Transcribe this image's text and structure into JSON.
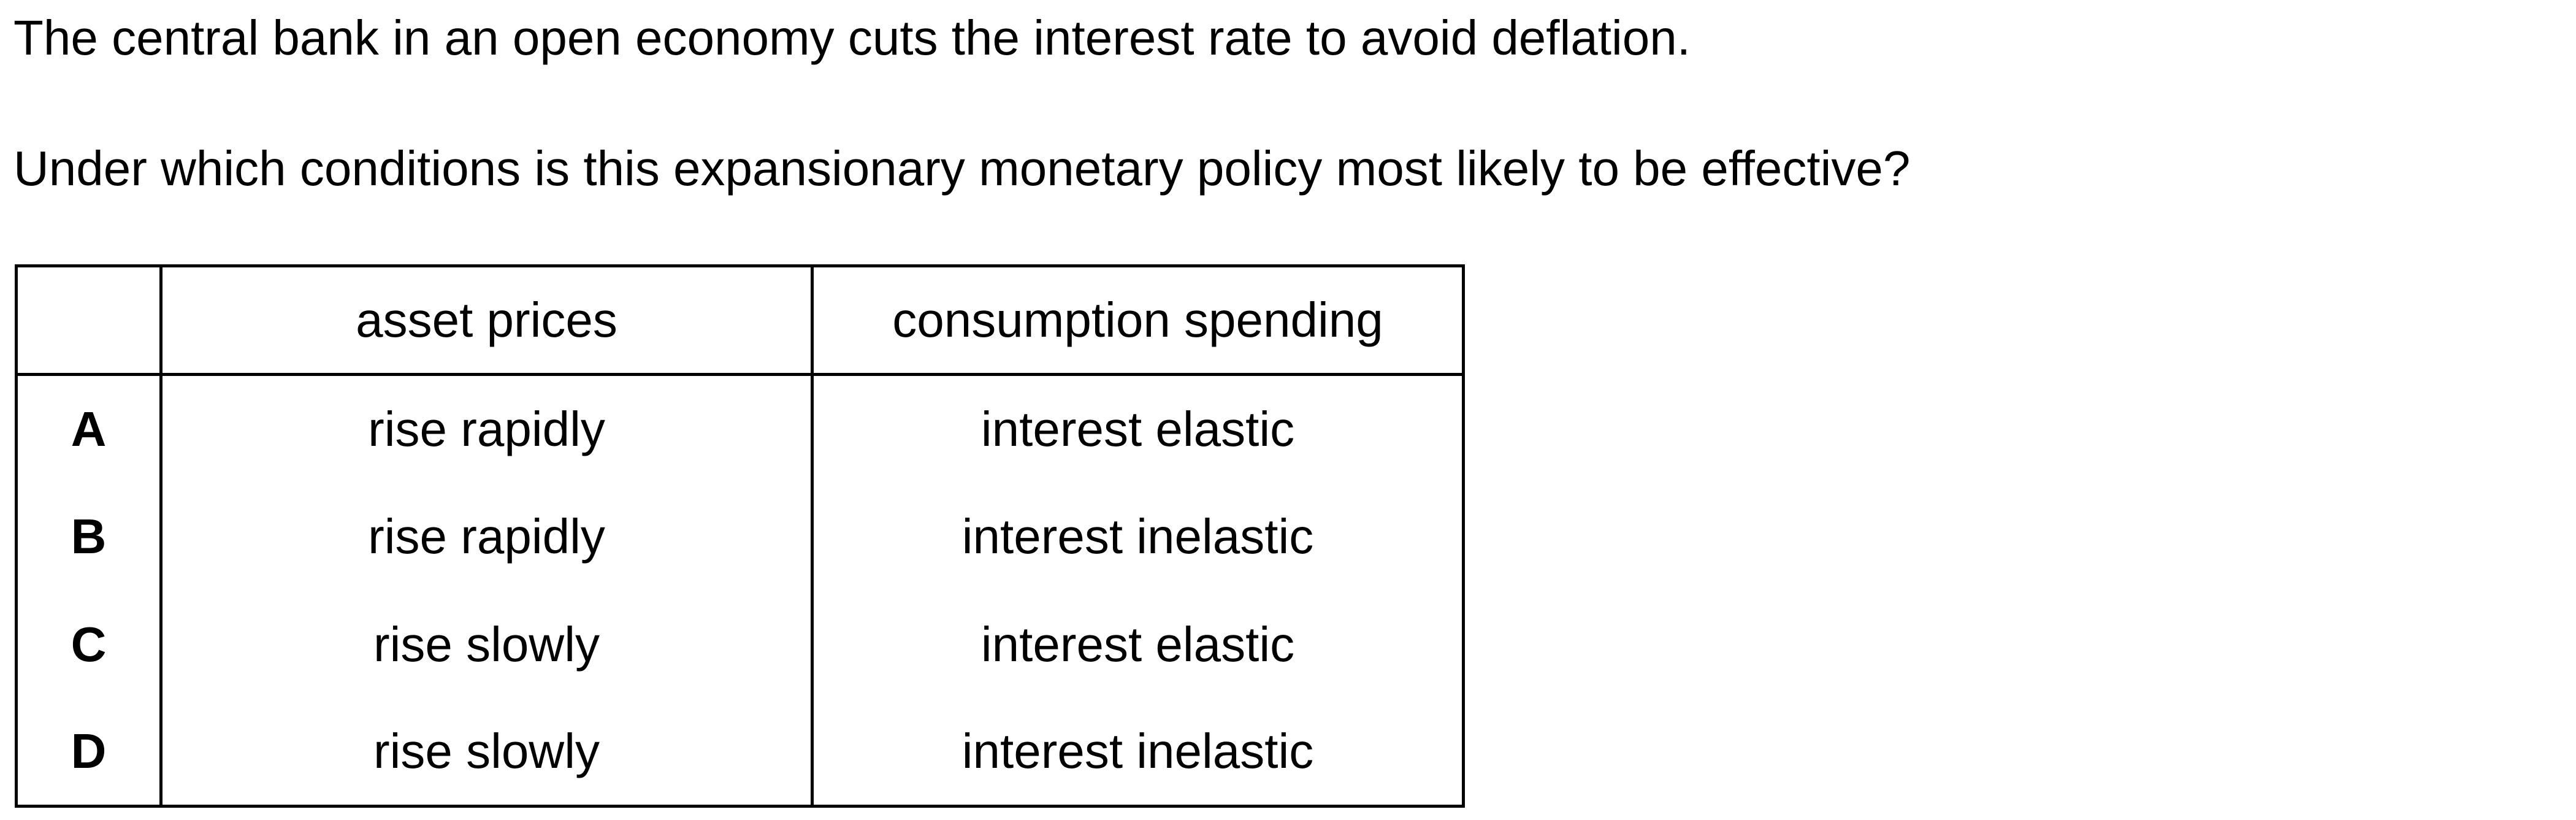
{
  "question": {
    "stem": "The central bank in an open economy cuts the interest rate to avoid deflation.",
    "prompt": "Under which conditions is this expansionary monetary policy most likely to be effective?"
  },
  "table": {
    "headers": [
      "",
      "asset prices",
      "consumption spending"
    ],
    "rows": [
      {
        "letter": "A",
        "asset_prices": "rise rapidly",
        "consumption_spending": "interest elastic"
      },
      {
        "letter": "B",
        "asset_prices": "rise rapidly",
        "consumption_spending": "interest inelastic"
      },
      {
        "letter": "C",
        "asset_prices": "rise slowly",
        "consumption_spending": "interest elastic"
      },
      {
        "letter": "D",
        "asset_prices": "rise slowly",
        "consumption_spending": "interest inelastic"
      }
    ]
  }
}
